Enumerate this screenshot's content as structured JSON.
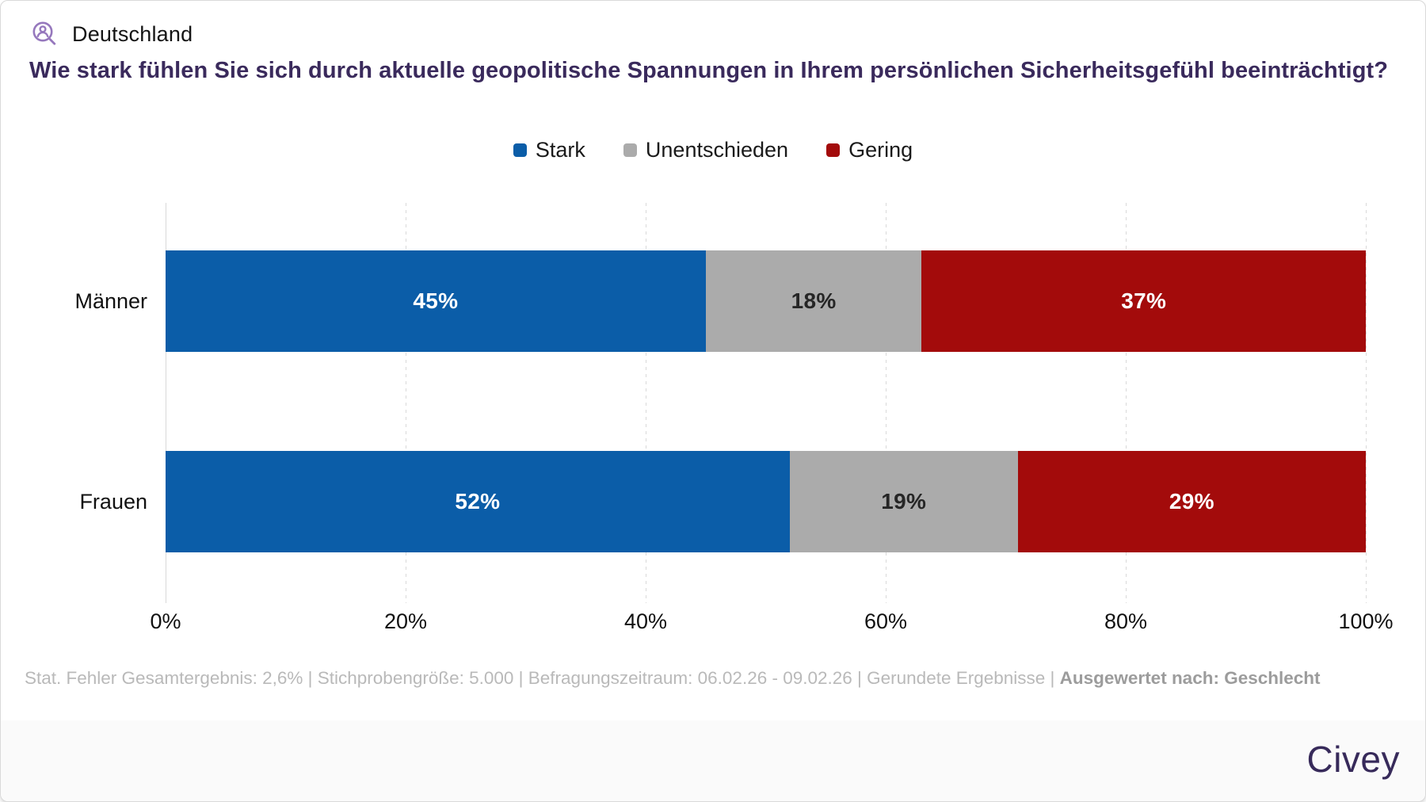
{
  "header": {
    "region": "Deutschland",
    "question": "Wie stark fühlen Sie sich durch aktuelle geopolitische Spannungen in Ihrem persönlichen Sicherheitsgefühl beeinträchtigt?"
  },
  "chart_data": {
    "type": "bar",
    "orientation": "horizontal",
    "stacked": true,
    "categories": [
      "Männer",
      "Frauen"
    ],
    "series": [
      {
        "name": "Stark",
        "color": "#0b5da8",
        "label_color": "#ffffff",
        "values": [
          45,
          52
        ]
      },
      {
        "name": "Unentschieden",
        "color": "#ababab",
        "label_color": "#262626",
        "values": [
          18,
          19
        ]
      },
      {
        "name": "Gering",
        "color": "#a30b0b",
        "label_color": "#ffffff",
        "values": [
          37,
          29
        ]
      }
    ],
    "value_suffix": "%",
    "x_ticks": [
      "0%",
      "20%",
      "40%",
      "60%",
      "80%",
      "100%"
    ],
    "xlim": [
      0,
      100
    ],
    "grid": "dashed-vertical",
    "legend_position": "top-center"
  },
  "footer": {
    "stats": [
      "Stat. Fehler Gesamtergebnis: 2,6%",
      "Stichprobengröße: 5.000",
      "Befragungszeitraum: 06.02.26 - 09.02.26",
      "Gerundete Ergebnisse"
    ],
    "separator": " | ",
    "emphasis": "Ausgewertet nach: Geschlecht",
    "brand": "Civey"
  },
  "colors": {
    "title_purple": "#3a2a5c",
    "icon_purple": "#9678bd",
    "brand_purple": "#372a5a",
    "gridline": "#d9d9d9",
    "footnote_gray": "#b9b9b9",
    "footer_bar_bg": "#fafafa"
  }
}
